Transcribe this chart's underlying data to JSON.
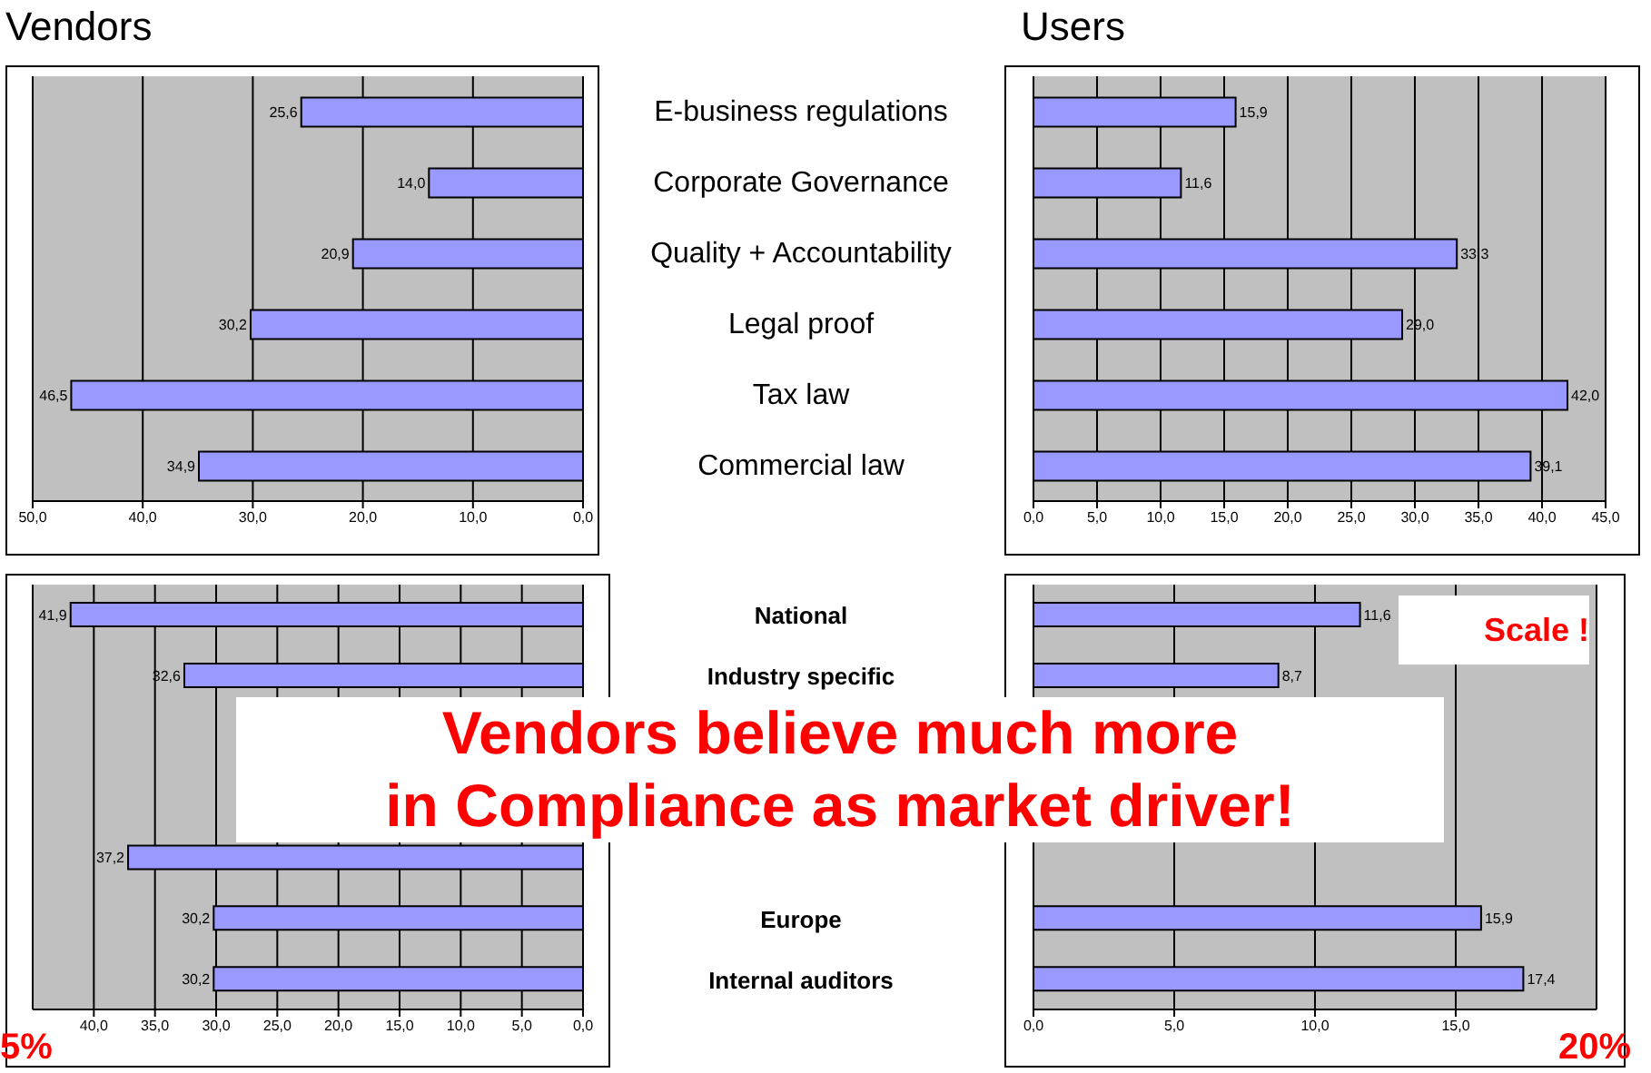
{
  "chart_data": [
    {
      "type": "bar",
      "orientation": "horizontal",
      "title": "Vendors",
      "categories": [
        "E-business regulations",
        "Corporate Governance",
        "Quality +  Accountability",
        "Legal proof",
        "Tax law",
        "Commercial law"
      ],
      "values": [
        25.6,
        14.0,
        20.9,
        30.2,
        46.5,
        34.9
      ],
      "value_labels": [
        "25,6",
        "14,0",
        "20,9",
        "30,2",
        "46,5",
        "34,9"
      ],
      "color": "#9999ff",
      "xlim": [
        50,
        0
      ],
      "xticks": [
        {
          "value": 50,
          "label": "50,0"
        },
        {
          "value": 40,
          "label": "40,0"
        },
        {
          "value": 30,
          "label": "30,0"
        },
        {
          "value": 20,
          "label": "20,0"
        },
        {
          "value": 10,
          "label": "10,0"
        },
        {
          "value": 0,
          "label": "0,0"
        }
      ],
      "grid": "x"
    },
    {
      "type": "bar",
      "orientation": "horizontal",
      "title": "Users",
      "categories": [
        null,
        null,
        null,
        null,
        null,
        null
      ],
      "values": [
        15.9,
        11.6,
        33.3,
        29.0,
        42.0,
        39.1
      ],
      "value_labels": [
        "15,9",
        "11,6",
        "33,3",
        "29,0",
        "42,0",
        "39,1"
      ],
      "color": "#9999ff",
      "xlim": [
        0,
        45
      ],
      "xticks": [
        {
          "value": 0,
          "label": "0,0"
        },
        {
          "value": 5,
          "label": "5,0"
        },
        {
          "value": 10,
          "label": "10,0"
        },
        {
          "value": 15,
          "label": "15,0"
        },
        {
          "value": 20,
          "label": "20,0"
        },
        {
          "value": 25,
          "label": "25,0"
        },
        {
          "value": 30,
          "label": "30,0"
        },
        {
          "value": 35,
          "label": "35,0"
        },
        {
          "value": 40,
          "label": "40,0"
        },
        {
          "value": 45,
          "label": "45,0"
        }
      ],
      "grid": "x",
      "tick_labels": "x"
    },
    {
      "type": "bar",
      "orientation": "horizontal",
      "categories": [
        "National",
        "Industry specific",
        null,
        null,
        null,
        "Europe",
        "Internal auditors"
      ],
      "values": [
        41.9,
        32.6,
        null,
        null,
        37.2,
        30.2,
        30.2
      ],
      "value_labels": [
        "41,9",
        "32,6",
        null,
        null,
        "37,2",
        "30,2",
        "30,2"
      ],
      "color": "#9999ff",
      "xlim": [
        45,
        0
      ],
      "xticks": [
        {
          "value": 40,
          "label": "40,0"
        },
        {
          "value": 35,
          "label": "35,0"
        },
        {
          "value": 30,
          "label": "30,0"
        },
        {
          "value": 25,
          "label": "25,0"
        },
        {
          "value": 20,
          "label": "20,0"
        },
        {
          "value": 15,
          "label": "15,0"
        },
        {
          "value": 10,
          "label": "10,0"
        },
        {
          "value": 5,
          "label": "5,0"
        },
        {
          "value": 0,
          "label": "0,0"
        }
      ],
      "grid": "x",
      "annotations": [
        "Vendors believe much more",
        "in Compliance as market driver!",
        "5%"
      ]
    },
    {
      "type": "bar",
      "orientation": "horizontal",
      "categories": [
        null,
        null,
        null,
        null,
        null,
        null,
        null
      ],
      "values": [
        11.6,
        8.7,
        null,
        null,
        null,
        15.9,
        17.4
      ],
      "value_labels": [
        "11,6",
        "8,7",
        null,
        null,
        null,
        "15,9",
        "17,4"
      ],
      "color": "#9999ff",
      "xlim": [
        0,
        20
      ],
      "xticks": [
        {
          "value": 0,
          "label": "0,0"
        },
        {
          "value": 5,
          "label": "5,0"
        },
        {
          "value": 10,
          "label": "10,0"
        },
        {
          "value": 15,
          "label": "15,0"
        }
      ],
      "grid": "x",
      "tick_labels": "x",
      "annotations": [
        "Scale !",
        "20%"
      ]
    }
  ]
}
